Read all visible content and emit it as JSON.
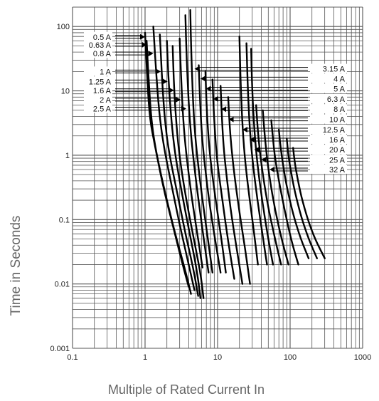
{
  "chart_data": {
    "type": "line",
    "title": "",
    "xlabel": "Multiple of Rated Current In",
    "ylabel": "Time in Seconds",
    "x_scale": "log",
    "y_scale": "log",
    "xlim": [
      0.1,
      1000
    ],
    "ylim": [
      0.001,
      200
    ],
    "grid": true,
    "x_ticks": [
      {
        "value": 0.1,
        "label": "0.1"
      },
      {
        "value": 1,
        "label": "1"
      },
      {
        "value": 10,
        "label": "10"
      },
      {
        "value": 100,
        "label": "100"
      },
      {
        "value": 1000,
        "label": "1000"
      }
    ],
    "y_ticks": [
      {
        "value": 0.001,
        "label": "0.001"
      },
      {
        "value": 0.01,
        "label": "0.01"
      },
      {
        "value": 0.1,
        "label": "0.1"
      },
      {
        "value": 1,
        "label": "1"
      },
      {
        "value": 10,
        "label": "10"
      },
      {
        "value": 100,
        "label": "100"
      }
    ],
    "series": [
      {
        "name": "0.5 A",
        "x": [
          1.0,
          1.06,
          1.15,
          1.35,
          1.8,
          2.5,
          3.3,
          4.0
        ],
        "y": [
          80,
          20,
          4,
          1.5,
          0.3,
          0.07,
          0.02,
          0.009
        ]
      },
      {
        "name": "0.63 A",
        "x": [
          1.05,
          1.12,
          1.22,
          1.4,
          1.9,
          2.6,
          3.5,
          4.3
        ],
        "y": [
          60,
          15,
          3.5,
          1.2,
          0.25,
          0.06,
          0.018,
          0.007
        ]
      },
      {
        "name": "0.8 A",
        "x": [
          1.3,
          1.4,
          1.55,
          1.8,
          2.4,
          3.1,
          4.0,
          4.8
        ],
        "y": [
          100,
          25,
          5,
          1.4,
          0.28,
          0.07,
          0.02,
          0.008
        ]
      },
      {
        "name": "1 A",
        "x": [
          1.6,
          1.7,
          1.85,
          2.1,
          2.8,
          3.6,
          4.6,
          5.4
        ],
        "y": [
          75,
          18,
          4,
          1.2,
          0.25,
          0.06,
          0.018,
          0.0065
        ]
      },
      {
        "name": "1.25 A",
        "x": [
          2.0,
          2.1,
          2.3,
          2.6,
          3.3,
          4.2,
          5.2,
          5.8
        ],
        "y": [
          60,
          15,
          3.5,
          1.0,
          0.22,
          0.055,
          0.016,
          0.006
        ]
      },
      {
        "name": "1.6 A",
        "x": [
          2.4,
          2.5,
          2.7,
          3.0,
          3.7,
          4.7,
          5.8,
          6.4
        ],
        "y": [
          50,
          12,
          3,
          0.9,
          0.2,
          0.05,
          0.015,
          0.006
        ]
      },
      {
        "name": "2 A",
        "x": [
          3.0,
          3.15,
          3.35,
          3.7,
          4.4,
          5.3,
          6.2
        ],
        "y": [
          65,
          15,
          3.5,
          1.0,
          0.22,
          0.055,
          0.018
        ]
      },
      {
        "name": "2.5 A",
        "x": [
          3.6,
          3.75,
          4.0,
          4.4,
          5.2,
          6.3,
          7.5
        ],
        "y": [
          150,
          30,
          6,
          1.5,
          0.3,
          0.06,
          0.015
        ]
      },
      {
        "name": "3.15 A",
        "x": [
          4.2,
          4.35,
          4.6,
          5.0,
          5.9,
          7.2,
          8.5
        ],
        "y": [
          180,
          35,
          6,
          1.5,
          0.3,
          0.06,
          0.015
        ]
      },
      {
        "name": "4 A",
        "x": [
          5.5,
          5.7,
          6.0,
          6.5,
          7.6,
          9.2,
          11
        ],
        "y": [
          25,
          8,
          2.5,
          0.9,
          0.2,
          0.05,
          0.015
        ]
      },
      {
        "name": "5 A",
        "x": [
          6.8,
          7.0,
          7.4,
          8.0,
          9.4,
          11.3,
          13
        ],
        "y": [
          20,
          7,
          2.2,
          0.8,
          0.2,
          0.05,
          0.015
        ]
      },
      {
        "name": "6.3 A",
        "x": [
          8.5,
          8.8,
          9.3,
          10,
          11.8,
          14,
          17
        ],
        "y": [
          15,
          5.5,
          1.8,
          0.7,
          0.18,
          0.045,
          0.012
        ]
      },
      {
        "name": "8 A",
        "x": [
          11,
          11.4,
          12,
          13,
          15,
          18,
          22
        ],
        "y": [
          12,
          4.5,
          1.5,
          0.6,
          0.15,
          0.04,
          0.01
        ]
      },
      {
        "name": "10 A",
        "x": [
          14,
          14.5,
          15.5,
          17,
          20,
          24,
          28
        ],
        "y": [
          8,
          3.5,
          1.3,
          0.5,
          0.13,
          0.035,
          0.01
        ]
      },
      {
        "name": "12.5 A",
        "x": [
          20,
          20.7,
          21.8,
          23.5,
          27,
          32,
          36
        ],
        "y": [
          70,
          15,
          3.5,
          1.0,
          0.25,
          0.06,
          0.02
        ]
      },
      {
        "name": "16 A",
        "x": [
          25,
          26,
          27.5,
          30,
          35,
          42,
          48
        ],
        "y": [
          55,
          12,
          3,
          0.9,
          0.22,
          0.055,
          0.02
        ]
      },
      {
        "name": "20 A",
        "x": [
          29,
          30,
          32,
          35,
          41,
          50,
          58
        ],
        "y": [
          45,
          10,
          2.6,
          0.8,
          0.2,
          0.05,
          0.02
        ]
      },
      {
        "name": "25 A",
        "x": [
          34,
          35.5,
          38,
          42,
          50,
          62,
          75
        ],
        "y": [
          6,
          2.8,
          1.2,
          0.5,
          0.15,
          0.05,
          0.02
        ]
      },
      {
        "name": "32 A",
        "x": [
          42,
          44,
          47,
          52,
          62,
          78,
          95
        ],
        "y": [
          5,
          2.5,
          1.1,
          0.45,
          0.14,
          0.045,
          0.02
        ]
      },
      {
        "x": [
          55,
          58,
          62,
          70,
          85,
          105,
          130
        ],
        "y": [
          3.5,
          1.8,
          0.9,
          0.4,
          0.13,
          0.045,
          0.02
        ]
      },
      {
        "x": [
          70,
          74,
          80,
          90,
          110,
          140,
          180
        ],
        "y": [
          2.5,
          1.3,
          0.7,
          0.32,
          0.12,
          0.05,
          0.025
        ]
      },
      {
        "x": [
          90,
          95,
          103,
          116,
          142,
          180,
          235
        ],
        "y": [
          1.8,
          0.95,
          0.55,
          0.27,
          0.11,
          0.05,
          0.025
        ]
      },
      {
        "x": [
          110,
          116,
          126,
          142,
          175,
          220,
          300
        ],
        "y": [
          1.3,
          0.75,
          0.45,
          0.23,
          0.1,
          0.05,
          0.025
        ]
      }
    ],
    "curve_labels": [
      {
        "text": "0.5 A",
        "side": "left",
        "y": 69,
        "x_end": 1.0
      },
      {
        "text": "0.63 A",
        "side": "left",
        "y": 52,
        "x_end": 1.06
      },
      {
        "text": "0.8 A",
        "side": "left",
        "y": 38,
        "x_end": 1.3
      },
      {
        "text": "1 A",
        "side": "left",
        "y": 20,
        "x_end": 1.65
      },
      {
        "text": "1.25 A",
        "side": "left",
        "y": 14,
        "x_end": 2.05
      },
      {
        "text": "1.6 A",
        "side": "left",
        "y": 10.2,
        "x_end": 2.5
      },
      {
        "text": "2 A",
        "side": "left",
        "y": 7.3,
        "x_end": 3.1
      },
      {
        "text": "2.5 A",
        "side": "left",
        "y": 5.3,
        "x_end": 3.7
      },
      {
        "text": "3.15 A",
        "side": "right",
        "y": 22,
        "x_end": 4.8
      },
      {
        "text": "4 A",
        "side": "right",
        "y": 15.5,
        "x_end": 5.8
      },
      {
        "text": "5 A",
        "side": "right",
        "y": 10.8,
        "x_end": 6.9
      },
      {
        "text": "6.3 A",
        "side": "right",
        "y": 7.5,
        "x_end": 8.7
      },
      {
        "text": "8 A",
        "side": "right",
        "y": 5.2,
        "x_end": 11.2
      },
      {
        "text": "10 A",
        "side": "right",
        "y": 3.6,
        "x_end": 14.2
      },
      {
        "text": "12.5 A",
        "side": "right",
        "y": 2.5,
        "x_end": 22
      },
      {
        "text": "16 A",
        "side": "right",
        "y": 1.75,
        "x_end": 27.5
      },
      {
        "text": "20 A",
        "side": "right",
        "y": 1.22,
        "x_end": 32
      },
      {
        "text": "25 A",
        "side": "right",
        "y": 0.85,
        "x_end": 40
      },
      {
        "text": "32 A",
        "side": "right",
        "y": 0.6,
        "x_end": 52
      }
    ]
  },
  "colors": {
    "grid": "#555555",
    "curve": "#000000",
    "axis_title": "#666666"
  }
}
